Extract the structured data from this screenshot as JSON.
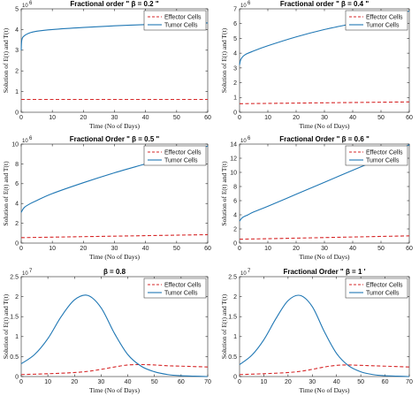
{
  "chart_data": [
    {
      "type": "line",
      "title": "Fractional order \" β = 0.2 \"",
      "xlabel": "Time (No of Days)",
      "ylabel": "Solution of E(t) and T(t)",
      "y_exponent": "10",
      "y_exponent_power": "6",
      "xlim": [
        0,
        60
      ],
      "ylim": [
        0,
        5
      ],
      "x_ticks": [
        "0",
        "10",
        "20",
        "30",
        "40",
        "50",
        "60"
      ],
      "y_ticks": [
        "0",
        "1",
        "2",
        "3",
        "4",
        "5"
      ],
      "legend_position": "top-right",
      "series": [
        {
          "name": "Effector Cells",
          "style": "dashed",
          "color": "#d62728",
          "x": [
            0,
            10,
            20,
            30,
            40,
            50,
            60
          ],
          "y": [
            0.62,
            0.62,
            0.62,
            0.62,
            0.62,
            0.62,
            0.62
          ]
        },
        {
          "name": "Tumor Cells",
          "style": "solid",
          "color": "#1f77b4",
          "x": [
            0,
            0.2,
            1,
            3,
            5,
            10,
            20,
            30,
            40,
            50,
            60
          ],
          "y": [
            3.0,
            3.5,
            3.7,
            3.85,
            3.92,
            4.0,
            4.1,
            4.18,
            4.24,
            4.28,
            4.32
          ]
        }
      ]
    },
    {
      "type": "line",
      "title": "Fractional order \" β = 0.4 \"",
      "xlabel": "Time (No of Days)",
      "ylabel": "Solution of E(t) and T(t)",
      "y_exponent": "10",
      "y_exponent_power": "6",
      "xlim": [
        0,
        60
      ],
      "ylim": [
        0,
        7
      ],
      "x_ticks": [
        "0",
        "10",
        "20",
        "30",
        "40",
        "50",
        "60"
      ],
      "y_ticks": [
        "0",
        "1",
        "2",
        "3",
        "4",
        "5",
        "6",
        "7"
      ],
      "legend_position": "top-right",
      "series": [
        {
          "name": "Effector Cells",
          "style": "dashed",
          "color": "#d62728",
          "x": [
            0,
            10,
            20,
            30,
            40,
            50,
            60
          ],
          "y": [
            0.58,
            0.6,
            0.62,
            0.64,
            0.66,
            0.68,
            0.7
          ]
        },
        {
          "name": "Tumor Cells",
          "style": "solid",
          "color": "#1f77b4",
          "x": [
            0,
            0.5,
            2,
            5,
            10,
            20,
            30,
            40,
            50,
            60
          ],
          "y": [
            3.2,
            3.6,
            3.9,
            4.15,
            4.5,
            5.1,
            5.6,
            6.0,
            6.4,
            6.85
          ]
        }
      ]
    },
    {
      "type": "line",
      "title": "Fractional Order \" β = 0.5 \"",
      "xlabel": "Time (No of Days)",
      "ylabel": "Solution of E(t) and T(t)",
      "y_exponent": "10",
      "y_exponent_power": "6",
      "xlim": [
        0,
        60
      ],
      "ylim": [
        0,
        10
      ],
      "x_ticks": [
        "0",
        "10",
        "20",
        "30",
        "40",
        "50",
        "60"
      ],
      "y_ticks": [
        "0",
        "2",
        "4",
        "6",
        "8",
        "10"
      ],
      "legend_position": "top-right",
      "series": [
        {
          "name": "Effector Cells",
          "style": "dashed",
          "color": "#d62728",
          "x": [
            0,
            10,
            20,
            30,
            40,
            50,
            60
          ],
          "y": [
            0.55,
            0.6,
            0.65,
            0.7,
            0.75,
            0.8,
            0.85
          ]
        },
        {
          "name": "Tumor Cells",
          "style": "solid",
          "color": "#1f77b4",
          "x": [
            0,
            1,
            3,
            5,
            10,
            20,
            30,
            40,
            50,
            60
          ],
          "y": [
            3.1,
            3.6,
            4.0,
            4.3,
            5.0,
            6.1,
            7.1,
            8.0,
            8.9,
            9.8
          ]
        }
      ]
    },
    {
      "type": "line",
      "title": "Fractional Order \" β = 0.6 \"",
      "xlabel": "Time (No of Days)",
      "ylabel": "Solution of E(t) and T(t)",
      "y_exponent": "10",
      "y_exponent_power": "6",
      "xlim": [
        0,
        60
      ],
      "ylim": [
        0,
        14
      ],
      "x_ticks": [
        "0",
        "10",
        "20",
        "30",
        "40",
        "50",
        "60"
      ],
      "y_ticks": [
        "0",
        "2",
        "4",
        "6",
        "8",
        "10",
        "12",
        "14"
      ],
      "legend_position": "top-right",
      "series": [
        {
          "name": "Effector Cells",
          "style": "dashed",
          "color": "#d62728",
          "x": [
            0,
            10,
            20,
            30,
            40,
            50,
            60
          ],
          "y": [
            0.55,
            0.62,
            0.7,
            0.78,
            0.86,
            0.94,
            1.02
          ]
        },
        {
          "name": "Tumor Cells",
          "style": "solid",
          "color": "#1f77b4",
          "x": [
            0,
            1,
            3,
            5,
            10,
            20,
            30,
            40,
            50,
            60
          ],
          "y": [
            3.1,
            3.6,
            4.0,
            4.4,
            5.2,
            6.9,
            8.6,
            10.3,
            12.0,
            13.9
          ]
        }
      ]
    },
    {
      "type": "line",
      "title": "β = 0.8",
      "xlabel": "Time (No of Days)",
      "ylabel": "Solution of E(t) and T(t)",
      "y_exponent": "10",
      "y_exponent_power": "7",
      "xlim": [
        0,
        70
      ],
      "ylim": [
        0,
        2.5
      ],
      "x_ticks": [
        "0",
        "10",
        "20",
        "30",
        "40",
        "50",
        "60",
        "70"
      ],
      "y_ticks": [
        "0",
        "0.5",
        "1",
        "1.5",
        "2",
        "2.5"
      ],
      "legend_position": "top-right",
      "series": [
        {
          "name": "Effector Cells",
          "style": "dashed",
          "color": "#d62728",
          "x": [
            0,
            10,
            20,
            25,
            30,
            35,
            40,
            45,
            50,
            55,
            60,
            70
          ],
          "y": [
            0.05,
            0.07,
            0.1,
            0.13,
            0.18,
            0.24,
            0.29,
            0.3,
            0.29,
            0.27,
            0.26,
            0.24
          ]
        },
        {
          "name": "Tumor Cells",
          "style": "solid",
          "color": "#1f77b4",
          "x": [
            0,
            5,
            10,
            15,
            20,
            25,
            30,
            35,
            40,
            45,
            50,
            55,
            60,
            65,
            70
          ],
          "y": [
            0.32,
            0.55,
            0.95,
            1.5,
            1.92,
            2.03,
            1.72,
            1.08,
            0.55,
            0.26,
            0.12,
            0.05,
            0.02,
            0.01,
            0.0
          ]
        }
      ]
    },
    {
      "type": "line",
      "title": "Fractional Order \" β = 1 '",
      "xlabel": "Time (No of Days)",
      "ylabel": "Solution of E(t) and T(t)",
      "y_exponent": "10",
      "y_exponent_power": "7",
      "xlim": [
        0,
        70
      ],
      "ylim": [
        0,
        2.5
      ],
      "x_ticks": [
        "0",
        "10",
        "20",
        "30",
        "40",
        "50",
        "60",
        "70"
      ],
      "y_ticks": [
        "0",
        "0.5",
        "1",
        "1.5",
        "2",
        "2.5"
      ],
      "legend_position": "top-right",
      "series": [
        {
          "name": "Effector Cells",
          "style": "dashed",
          "color": "#d62728",
          "x": [
            0,
            10,
            20,
            25,
            30,
            35,
            40,
            45,
            50,
            55,
            60,
            70
          ],
          "y": [
            0.05,
            0.07,
            0.1,
            0.13,
            0.18,
            0.24,
            0.28,
            0.29,
            0.28,
            0.27,
            0.26,
            0.24
          ]
        },
        {
          "name": "Tumor Cells",
          "style": "solid",
          "color": "#1f77b4",
          "x": [
            0,
            5,
            10,
            15,
            20,
            25,
            30,
            35,
            40,
            45,
            50,
            55,
            60,
            65,
            70
          ],
          "y": [
            0.3,
            0.53,
            0.92,
            1.45,
            1.9,
            2.03,
            1.75,
            1.12,
            0.58,
            0.27,
            0.12,
            0.05,
            0.02,
            0.01,
            0.0
          ]
        }
      ]
    }
  ]
}
